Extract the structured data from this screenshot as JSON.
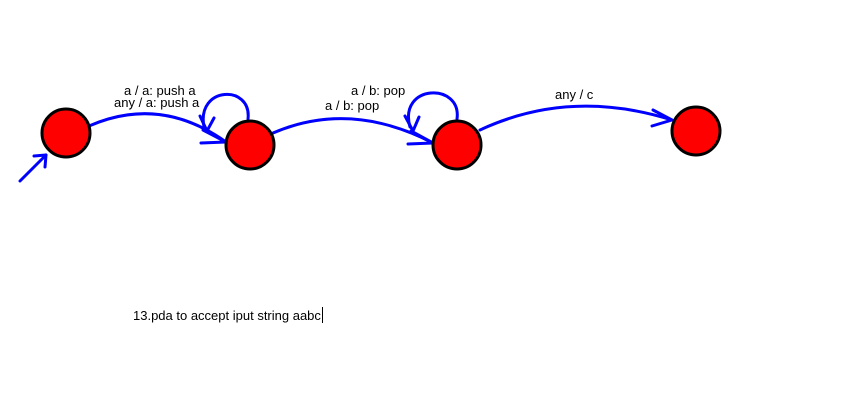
{
  "colors": {
    "state_fill": "#ff0000",
    "state_stroke": "#000000",
    "edge": "#0000ff",
    "text": "#000000"
  },
  "states": [
    "q0",
    "q1",
    "q2",
    "q3"
  ],
  "initial_state": "q0",
  "transitions": [
    {
      "from": "q0",
      "to": "q1",
      "label": "any / a: push a"
    },
    {
      "from": "q1",
      "to": "q1",
      "label": "a / a: push a"
    },
    {
      "from": "q1",
      "to": "q2",
      "label": "a / b: pop"
    },
    {
      "from": "q2",
      "to": "q2",
      "label": "a / b: pop"
    },
    {
      "from": "q2",
      "to": "q3",
      "label": "any / c"
    }
  ],
  "caption": "13.pda to accept iput string aabc"
}
